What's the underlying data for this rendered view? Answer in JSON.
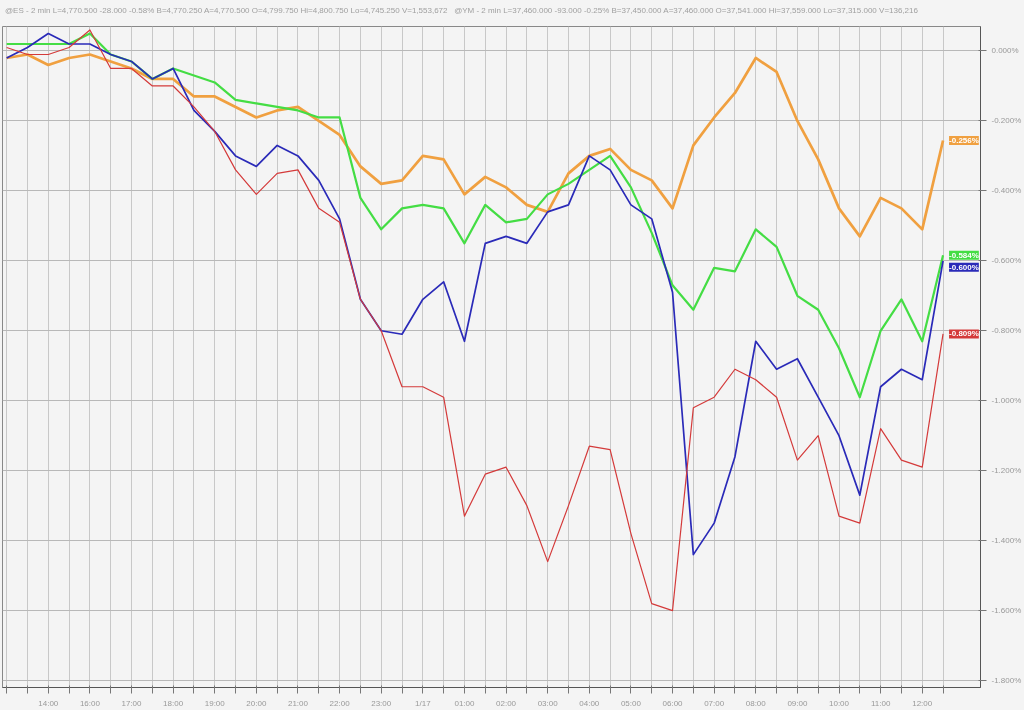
{
  "chart_data": {
    "type": "line",
    "annotations": [
      "@ES - 2 min  L=4,770.500  -28.000  -0.58%  B=4,770.250  A=4,770.500  O=4,799.750  Hi=4,800.750  Lo=4,745.250  V=1,553,672",
      "@YM - 2 min  L=37,460.000  -93.000  -0.25%  B=37,450.000  A=37,460.000  O=37,541.000  Hi=37,559.000  Lo=37,315.000  V=136,216"
    ],
    "categories": [
      null,
      null,
      "14:00",
      null,
      "16:00",
      null,
      "17:00",
      null,
      "18:00",
      null,
      "19:00",
      null,
      "20:00",
      null,
      "21:00",
      null,
      "22:00",
      null,
      "23:00",
      null,
      "1/17",
      null,
      "01:00",
      null,
      "02:00",
      null,
      "03:00",
      null,
      "04:00",
      null,
      "05:00",
      null,
      "06:00",
      null,
      "07:00",
      null,
      "08:00",
      null,
      "09:00",
      null,
      "10:00",
      null,
      "11:00",
      null,
      "12:00",
      null
    ],
    "series": [
      {
        "color": "#f0a040",
        "values": [
          -0.02,
          -0.01,
          -0.04,
          -0.02,
          -0.01,
          -0.03,
          -0.05,
          -0.08,
          -0.08,
          -0.13,
          -0.13,
          -0.16,
          -0.19,
          -0.17,
          -0.16,
          -0.2,
          -0.24,
          -0.33,
          -0.38,
          -0.37,
          -0.3,
          -0.31,
          -0.41,
          -0.36,
          -0.39,
          -0.44,
          -0.46,
          -0.35,
          -0.3,
          -0.28,
          -0.34,
          -0.37,
          -0.45,
          -0.27,
          -0.19,
          -0.12,
          -0.02,
          -0.06,
          -0.2,
          -0.31,
          -0.45,
          -0.53,
          -0.42,
          -0.45,
          -0.51,
          -0.256
        ],
        "value_labels": [
          null,
          null,
          null,
          null,
          null,
          null,
          null,
          null,
          null,
          null,
          null,
          null,
          null,
          null,
          null,
          null,
          null,
          null,
          null,
          null,
          null,
          null,
          null,
          null,
          null,
          null,
          null,
          null,
          null,
          null,
          null,
          null,
          null,
          null,
          null,
          null,
          null,
          null,
          null,
          null,
          null,
          null,
          null,
          null,
          null,
          "-0.256%"
        ]
      },
      {
        "color": "#44dd44",
        "values": [
          0.02,
          0.02,
          0.02,
          0.02,
          0.05,
          -0.01,
          -0.03,
          -0.08,
          -0.05,
          -0.07,
          -0.09,
          -0.14,
          -0.15,
          -0.16,
          -0.17,
          -0.19,
          -0.19,
          -0.42,
          -0.51,
          -0.45,
          -0.44,
          -0.45,
          -0.55,
          -0.44,
          -0.49,
          -0.48,
          -0.41,
          -0.38,
          -0.34,
          -0.3,
          -0.39,
          -0.52,
          -0.67,
          -0.74,
          -0.62,
          -0.63,
          -0.51,
          -0.56,
          -0.7,
          -0.74,
          -0.85,
          -0.99,
          -0.8,
          -0.71,
          -0.83,
          -0.584
        ],
        "value_labels": [
          null,
          null,
          null,
          null,
          null,
          null,
          null,
          null,
          null,
          null,
          null,
          null,
          null,
          null,
          null,
          null,
          null,
          null,
          null,
          null,
          null,
          null,
          null,
          null,
          null,
          null,
          null,
          null,
          null,
          null,
          null,
          null,
          null,
          null,
          null,
          null,
          null,
          null,
          null,
          null,
          null,
          null,
          null,
          null,
          null,
          "-0.584%"
        ]
      },
      {
        "color": "#2a2ab8",
        "values": [
          -0.02,
          0.01,
          0.05,
          0.02,
          0.02,
          -0.01,
          -0.03,
          -0.08,
          -0.05,
          -0.17,
          -0.23,
          -0.3,
          -0.33,
          -0.27,
          -0.3,
          -0.37,
          -0.48,
          -0.71,
          -0.8,
          -0.81,
          -0.71,
          -0.66,
          -0.83,
          -0.55,
          -0.53,
          -0.55,
          -0.46,
          -0.44,
          -0.3,
          -0.34,
          -0.44,
          -0.48,
          -0.69,
          -1.44,
          -1.35,
          -1.16,
          -0.83,
          -0.91,
          -0.88,
          -0.99,
          -1.1,
          -1.27,
          -0.96,
          -0.91,
          -0.94,
          -0.6
        ],
        "value_labels": [
          null,
          null,
          null,
          null,
          null,
          null,
          null,
          null,
          null,
          null,
          null,
          null,
          null,
          null,
          null,
          null,
          null,
          null,
          null,
          null,
          null,
          null,
          null,
          null,
          null,
          null,
          null,
          null,
          null,
          null,
          null,
          null,
          null,
          null,
          null,
          null,
          null,
          null,
          null,
          null,
          null,
          null,
          null,
          null,
          null,
          "-0.600%"
        ]
      },
      {
        "color": "#d43a3a",
        "values": [
          0.01,
          -0.01,
          -0.01,
          0.01,
          0.06,
          -0.05,
          -0.05,
          -0.1,
          -0.1,
          -0.16,
          -0.23,
          -0.34,
          -0.41,
          -0.35,
          -0.34,
          -0.45,
          -0.49,
          -0.71,
          -0.8,
          -0.96,
          -0.96,
          -0.99,
          -1.33,
          -1.21,
          -1.19,
          -1.3,
          -1.46,
          -1.3,
          -1.13,
          -1.14,
          -1.38,
          -1.58,
          -1.6,
          -1.02,
          -0.99,
          -0.91,
          -0.94,
          -0.99,
          -1.17,
          -1.1,
          -1.33,
          -1.35,
          -1.08,
          -1.17,
          -1.19,
          -0.809
        ],
        "value_labels": [
          null,
          null,
          null,
          null,
          null,
          null,
          null,
          null,
          null,
          null,
          null,
          null,
          null,
          null,
          null,
          null,
          null,
          null,
          null,
          null,
          null,
          null,
          null,
          null,
          null,
          null,
          null,
          null,
          null,
          null,
          null,
          null,
          null,
          null,
          null,
          null,
          null,
          null,
          null,
          null,
          null,
          null,
          null,
          null,
          null,
          "-0.809%"
        ]
      }
    ],
    "ylim": [
      -1.82,
      0.07
    ],
    "yticks": [
      {
        "value": 0,
        "label": "0.000%"
      },
      {
        "value": -0.2,
        "label": "-0.200%"
      },
      {
        "value": -0.4,
        "label": "-0.400%"
      },
      {
        "value": -0.6,
        "label": "-0.600%"
      },
      {
        "value": -0.8,
        "label": "-0.800%"
      },
      {
        "value": -1.0,
        "label": "-1.000%"
      },
      {
        "value": -1.2,
        "label": "-1.200%"
      },
      {
        "value": -1.4,
        "label": "-1.400%"
      },
      {
        "value": -1.6,
        "label": "-1.600%"
      },
      {
        "value": -1.8,
        "label": "-1.800%"
      }
    ],
    "grid": true
  }
}
